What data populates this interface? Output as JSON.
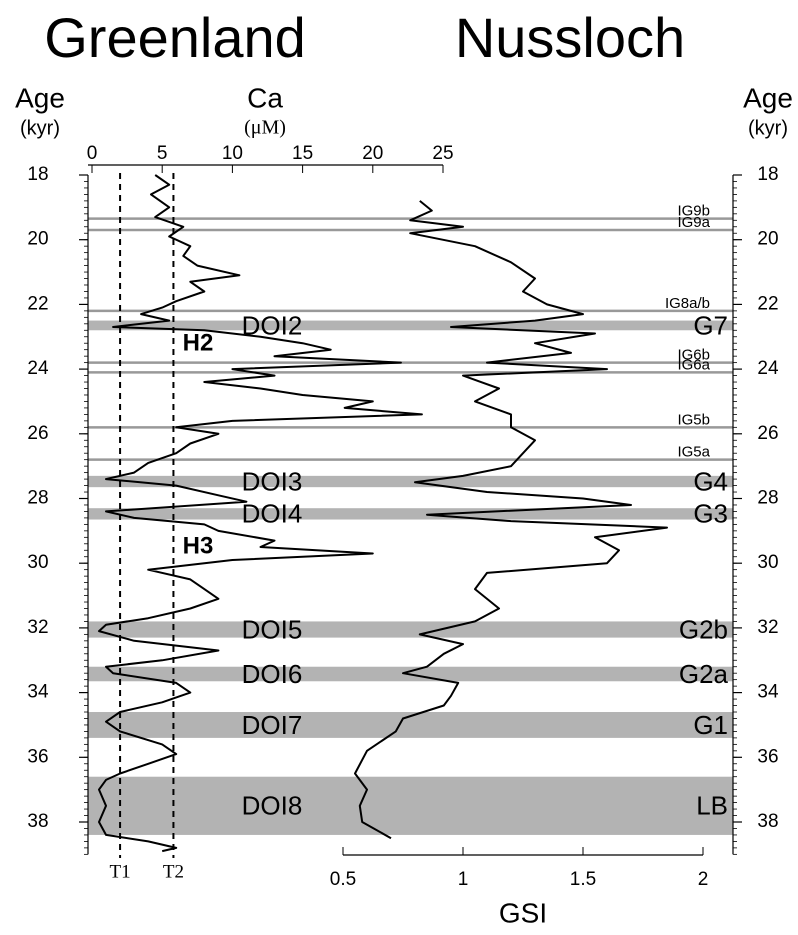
{
  "chart_data": {
    "type": "line",
    "titles": [
      "Greenland",
      "Nussloch"
    ],
    "ylabel": "Age",
    "ylabel_unit": "(kyr)",
    "ylim": [
      18,
      39
    ],
    "yticks": [
      18,
      20,
      22,
      24,
      26,
      28,
      30,
      32,
      34,
      36,
      38
    ],
    "ca": {
      "xlabel": "Ca",
      "xlabel_unit": "(μM)",
      "color": "#000000",
      "xlim": [
        0,
        25
      ],
      "xticks": [
        0,
        5,
        10,
        15,
        20,
        25
      ],
      "age": [
        18.0,
        18.3,
        18.6,
        19.0,
        19.3,
        19.6,
        19.9,
        20.2,
        20.5,
        20.8,
        21.1,
        21.3,
        21.6,
        21.9,
        22.1,
        22.3,
        22.5,
        22.7,
        22.8,
        23.0,
        23.2,
        23.4,
        23.6,
        23.8,
        24.0,
        24.2,
        24.4,
        24.6,
        24.8,
        25.0,
        25.2,
        25.4,
        25.6,
        25.8,
        26.0,
        26.3,
        26.6,
        26.9,
        27.2,
        27.4,
        27.6,
        27.9,
        28.1,
        28.4,
        28.6,
        28.8,
        29.0,
        29.3,
        29.5,
        29.7,
        29.9,
        30.2,
        30.5,
        30.8,
        31.1,
        31.4,
        31.7,
        31.9,
        32.1,
        32.4,
        32.7,
        33.0,
        33.2,
        33.4,
        33.7,
        34.0,
        34.3,
        34.6,
        34.9,
        35.2,
        35.6,
        35.9,
        36.2,
        36.5,
        36.7,
        37.0,
        37.5,
        38.0,
        38.4,
        38.6,
        38.8,
        38.9
      ],
      "values": [
        4.5,
        5.5,
        4.2,
        5.5,
        4.5,
        6.5,
        5.5,
        7,
        6.5,
        7.5,
        10.5,
        7,
        8,
        6,
        5,
        3.5,
        5.5,
        1.5,
        8,
        12,
        15,
        17,
        13,
        22,
        10,
        13,
        8,
        12,
        15,
        20,
        18,
        23.5,
        10,
        6,
        9,
        7,
        6,
        4,
        3,
        1,
        6,
        9,
        11,
        1,
        3,
        8,
        9,
        13,
        12,
        20,
        10,
        4,
        7,
        8,
        9,
        7,
        4,
        1,
        0.5,
        3,
        9,
        5,
        1,
        1.5,
        6,
        7,
        5,
        2,
        1,
        2,
        5,
        6,
        4,
        2,
        1,
        0.5,
        1,
        0.5,
        1,
        4,
        6,
        5
      ]
    },
    "gsi": {
      "xlabel": "GSI",
      "color": "#000000",
      "xlim": [
        0.5,
        2
      ],
      "xticks": [
        0.5,
        1,
        1.5,
        2
      ],
      "age": [
        18.8,
        19.1,
        19.4,
        19.6,
        19.8,
        20.2,
        20.7,
        21.2,
        21.6,
        22.0,
        22.3,
        22.5,
        22.7,
        22.9,
        23.2,
        23.5,
        23.8,
        24.0,
        24.2,
        24.6,
        25.0,
        25.4,
        25.8,
        26.2,
        26.6,
        27.0,
        27.3,
        27.5,
        27.8,
        28.0,
        28.2,
        28.5,
        28.7,
        28.9,
        29.2,
        29.6,
        30.0,
        30.3,
        30.8,
        31.4,
        31.8,
        32.2,
        32.5,
        32.8,
        33.2,
        33.4,
        33.7,
        34.1,
        34.4,
        34.8,
        35.2,
        35.8,
        36.5,
        37.0,
        37.5,
        38.0,
        38.5
      ],
      "values": [
        0.82,
        0.87,
        0.78,
        1.0,
        0.78,
        1.05,
        1.2,
        1.3,
        1.25,
        1.35,
        1.5,
        1.3,
        0.95,
        1.55,
        1.3,
        1.45,
        1.1,
        1.6,
        1.0,
        1.15,
        1.05,
        1.2,
        1.2,
        1.3,
        1.25,
        1.2,
        1.0,
        0.8,
        1.1,
        1.5,
        1.7,
        0.85,
        1.2,
        1.85,
        1.55,
        1.65,
        1.6,
        1.1,
        1.05,
        1.15,
        1.05,
        0.82,
        1.0,
        0.92,
        0.85,
        0.75,
        0.98,
        0.95,
        0.92,
        0.75,
        0.72,
        0.6,
        0.55,
        0.6,
        0.57,
        0.58,
        0.7
      ]
    },
    "thresholds": [
      {
        "value": 2,
        "label": "T1"
      },
      {
        "value": 5.8,
        "label": "T2"
      }
    ],
    "annotations": [
      "H2",
      "H3"
    ],
    "bands": [
      {
        "from": 22.5,
        "to": 22.8,
        "left_label": "DOI2",
        "right_label": "G7"
      },
      {
        "from": 27.3,
        "to": 27.65,
        "left_label": "DOI3",
        "right_label": "G4"
      },
      {
        "from": 28.3,
        "to": 28.65,
        "left_label": "DOI4",
        "right_label": "G3"
      },
      {
        "from": 31.8,
        "to": 32.3,
        "left_label": "DOI5",
        "right_label": "G2b"
      },
      {
        "from": 33.2,
        "to": 33.65,
        "left_label": "DOI6",
        "right_label": "G2a"
      },
      {
        "from": 34.6,
        "to": 35.4,
        "left_label": "DOI7",
        "right_label": "G1"
      },
      {
        "from": 36.6,
        "to": 38.4,
        "left_label": "DOI8",
        "right_label": "LB"
      }
    ],
    "lines": [
      {
        "age": 19.35,
        "label": "IG9b"
      },
      {
        "age": 19.7,
        "label": "IG9a"
      },
      {
        "age": 22.2,
        "label": "IG8a/b"
      },
      {
        "age": 23.8,
        "label": "IG6b"
      },
      {
        "age": 24.1,
        "label": "IG6a"
      },
      {
        "age": 25.8,
        "label": "IG5b"
      },
      {
        "age": 26.8,
        "label": "IG5a"
      }
    ]
  }
}
